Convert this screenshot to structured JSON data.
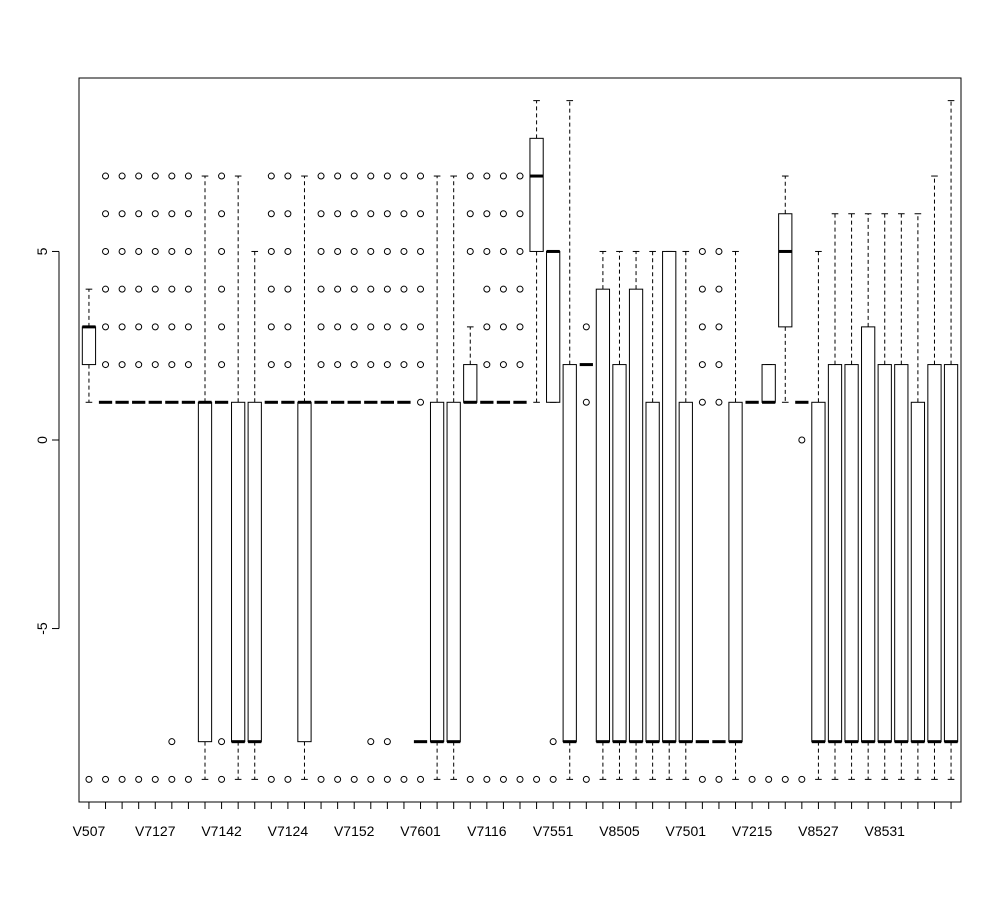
{
  "chart_data": {
    "type": "boxplot",
    "ylim": [
      -9.6,
      9.6
    ],
    "yticks": [
      -5,
      0,
      5
    ],
    "xtick_labels": [
      {
        "index": 1,
        "label": "V507"
      },
      {
        "index": 5,
        "label": "V7127"
      },
      {
        "index": 9,
        "label": "V7142"
      },
      {
        "index": 13,
        "label": "V7124"
      },
      {
        "index": 17,
        "label": "V7152"
      },
      {
        "index": 21,
        "label": "V7601"
      },
      {
        "index": 25,
        "label": "V7116"
      },
      {
        "index": 29,
        "label": "V7551"
      },
      {
        "index": 33,
        "label": "V8505"
      },
      {
        "index": 37,
        "label": "V7501"
      },
      {
        "index": 41,
        "label": "V7215"
      },
      {
        "index": 45,
        "label": "V8527"
      },
      {
        "index": 49,
        "label": "V8531"
      }
    ],
    "boxes": [
      {
        "q1": 2,
        "median": 3,
        "q3": 3,
        "wlo": 1,
        "whi": 4,
        "out": [
          -9
        ]
      },
      {
        "q1": 1,
        "median": 1,
        "q3": 1,
        "wlo": 1,
        "whi": 1,
        "out": [
          -9,
          2,
          3,
          4,
          5,
          6,
          7
        ]
      },
      {
        "q1": 1,
        "median": 1,
        "q3": 1,
        "wlo": 1,
        "whi": 1,
        "out": [
          -9,
          2,
          3,
          4,
          5,
          6,
          7
        ]
      },
      {
        "q1": 1,
        "median": 1,
        "q3": 1,
        "wlo": 1,
        "whi": 1,
        "out": [
          -9,
          2,
          3,
          4,
          5,
          6,
          7
        ]
      },
      {
        "q1": 1,
        "median": 1,
        "q3": 1,
        "wlo": 1,
        "whi": 1,
        "out": [
          -9,
          2,
          3,
          4,
          5,
          6,
          7
        ]
      },
      {
        "q1": 1,
        "median": 1,
        "q3": 1,
        "wlo": 1,
        "whi": 1,
        "out": [
          -9,
          -8,
          2,
          3,
          4,
          5,
          6,
          7
        ]
      },
      {
        "q1": 1,
        "median": 1,
        "q3": 1,
        "wlo": 1,
        "whi": 1,
        "out": [
          -9,
          2,
          3,
          4,
          5,
          6,
          7
        ]
      },
      {
        "q1": -8,
        "median": 1,
        "q3": 1,
        "wlo": -9,
        "whi": 7,
        "out": []
      },
      {
        "q1": 1,
        "median": 1,
        "q3": 1,
        "wlo": 1,
        "whi": 1,
        "out": [
          -9,
          -8,
          2,
          3,
          4,
          5,
          6,
          7
        ]
      },
      {
        "q1": -8,
        "median": -8,
        "q3": 1,
        "wlo": -9,
        "whi": 7,
        "out": []
      },
      {
        "q1": -8,
        "median": -8,
        "q3": 1,
        "wlo": -9,
        "whi": 5,
        "out": []
      },
      {
        "q1": 1,
        "median": 1,
        "q3": 1,
        "wlo": 1,
        "whi": 1,
        "out": [
          -9,
          2,
          3,
          4,
          5,
          6,
          7
        ]
      },
      {
        "q1": 1,
        "median": 1,
        "q3": 1,
        "wlo": 1,
        "whi": 1,
        "out": [
          -9,
          2,
          3,
          4,
          5,
          6,
          7
        ]
      },
      {
        "q1": -8,
        "median": 1,
        "q3": 1,
        "wlo": -9,
        "whi": 7,
        "out": []
      },
      {
        "q1": 1,
        "median": 1,
        "q3": 1,
        "wlo": 1,
        "whi": 1,
        "out": [
          -9,
          2,
          3,
          4,
          5,
          6,
          7
        ]
      },
      {
        "q1": 1,
        "median": 1,
        "q3": 1,
        "wlo": 1,
        "whi": 1,
        "out": [
          -9,
          2,
          3,
          4,
          5,
          6,
          7
        ]
      },
      {
        "q1": 1,
        "median": 1,
        "q3": 1,
        "wlo": 1,
        "whi": 1,
        "out": [
          -9,
          2,
          3,
          4,
          5,
          6,
          7
        ]
      },
      {
        "q1": 1,
        "median": 1,
        "q3": 1,
        "wlo": 1,
        "whi": 1,
        "out": [
          -9,
          -8,
          2,
          3,
          4,
          5,
          6,
          7
        ]
      },
      {
        "q1": 1,
        "median": 1,
        "q3": 1,
        "wlo": 1,
        "whi": 1,
        "out": [
          -9,
          -8,
          2,
          3,
          4,
          5,
          6,
          7
        ]
      },
      {
        "q1": 1,
        "median": 1,
        "q3": 1,
        "wlo": 1,
        "whi": 1,
        "out": [
          -9,
          2,
          3,
          4,
          5,
          6,
          7
        ]
      },
      {
        "q1": -8,
        "median": -8,
        "q3": -8,
        "wlo": -8,
        "whi": -8,
        "out": [
          -9,
          1,
          2,
          3,
          4,
          5,
          6,
          7
        ]
      },
      {
        "q1": -8,
        "median": -8,
        "q3": 1,
        "wlo": -9,
        "whi": 7,
        "out": []
      },
      {
        "q1": -8,
        "median": -8,
        "q3": 1,
        "wlo": -9,
        "whi": 7,
        "out": []
      },
      {
        "q1": 1,
        "median": 1,
        "q3": 2,
        "wlo": 1,
        "whi": 3,
        "out": [
          -9,
          5,
          6,
          7
        ]
      },
      {
        "q1": 1,
        "median": 1,
        "q3": 1,
        "wlo": 1,
        "whi": 1,
        "out": [
          -9,
          2,
          3,
          4,
          5,
          6,
          7
        ]
      },
      {
        "q1": 1,
        "median": 1,
        "q3": 1,
        "wlo": 1,
        "whi": 1,
        "out": [
          -9,
          2,
          3,
          4,
          5,
          6,
          7
        ]
      },
      {
        "q1": 1,
        "median": 1,
        "q3": 1,
        "wlo": 1,
        "whi": 1,
        "out": [
          -9,
          2,
          3,
          4,
          5,
          6,
          7
        ]
      },
      {
        "q1": 5,
        "median": 7,
        "q3": 8,
        "wlo": 1,
        "whi": 9,
        "out": [
          -9
        ]
      },
      {
        "q1": 1,
        "median": 5,
        "q3": 5,
        "wlo": 1,
        "whi": 5,
        "out": [
          -9,
          -8
        ]
      },
      {
        "q1": -8,
        "median": -8,
        "q3": 2,
        "wlo": -9,
        "whi": 9,
        "out": []
      },
      {
        "q1": 2,
        "median": 2,
        "q3": 2,
        "wlo": 2,
        "whi": 2,
        "out": [
          -9,
          1,
          3
        ]
      },
      {
        "q1": -8,
        "median": -8,
        "q3": 4,
        "wlo": -9,
        "whi": 5,
        "out": []
      },
      {
        "q1": -8,
        "median": -8,
        "q3": 2,
        "wlo": -9,
        "whi": 5,
        "out": []
      },
      {
        "q1": -8,
        "median": -8,
        "q3": 4,
        "wlo": -9,
        "whi": 5,
        "out": []
      },
      {
        "q1": -8,
        "median": -8,
        "q3": 1,
        "wlo": -9,
        "whi": 5,
        "out": []
      },
      {
        "q1": -8,
        "median": -8,
        "q3": 5,
        "wlo": -9,
        "whi": 5,
        "out": []
      },
      {
        "q1": -8,
        "median": -8,
        "q3": 1,
        "wlo": -9,
        "whi": 5,
        "out": []
      },
      {
        "q1": -8,
        "median": -8,
        "q3": -8,
        "wlo": -8,
        "whi": -8,
        "out": [
          -9,
          1,
          2,
          3,
          4,
          5
        ]
      },
      {
        "q1": -8,
        "median": -8,
        "q3": -8,
        "wlo": -8,
        "whi": -8,
        "out": [
          -9,
          1,
          2,
          3,
          4,
          5
        ]
      },
      {
        "q1": -8,
        "median": -8,
        "q3": 1,
        "wlo": -9,
        "whi": 5,
        "out": []
      },
      {
        "q1": 1,
        "median": 1,
        "q3": 1,
        "wlo": 1,
        "whi": 1,
        "out": [
          -9
        ]
      },
      {
        "q1": 1,
        "median": 1,
        "q3": 2,
        "wlo": 1,
        "whi": 2,
        "out": [
          -9
        ]
      },
      {
        "q1": 3,
        "median": 5,
        "q3": 6,
        "wlo": 1,
        "whi": 7,
        "out": [
          -9
        ]
      },
      {
        "q1": 1,
        "median": 1,
        "q3": 1,
        "wlo": 1,
        "whi": 1,
        "out": [
          -9,
          0
        ]
      },
      {
        "q1": -8,
        "median": -8,
        "q3": 1,
        "wlo": -9,
        "whi": 5,
        "out": []
      },
      {
        "q1": -8,
        "median": -8,
        "q3": 2,
        "wlo": -9,
        "whi": 6,
        "out": []
      },
      {
        "q1": -8,
        "median": -8,
        "q3": 2,
        "wlo": -9,
        "whi": 6,
        "out": []
      },
      {
        "q1": -8,
        "median": -8,
        "q3": 3,
        "wlo": -9,
        "whi": 6,
        "out": []
      },
      {
        "q1": -8,
        "median": -8,
        "q3": 2,
        "wlo": -9,
        "whi": 6,
        "out": []
      },
      {
        "q1": -8,
        "median": -8,
        "q3": 2,
        "wlo": -9,
        "whi": 6,
        "out": []
      },
      {
        "q1": -8,
        "median": -8,
        "q3": 1,
        "wlo": -9,
        "whi": 6,
        "out": []
      },
      {
        "q1": -8,
        "median": -8,
        "q3": 2,
        "wlo": -9,
        "whi": 7,
        "out": []
      },
      {
        "q1": -8,
        "median": -8,
        "q3": 2,
        "wlo": -9,
        "whi": 9,
        "out": []
      }
    ]
  }
}
